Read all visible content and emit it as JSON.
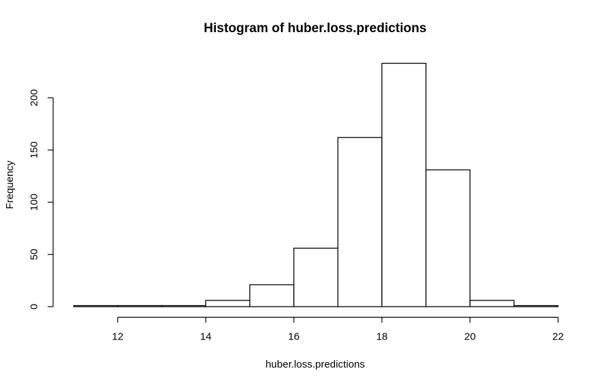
{
  "chart_data": {
    "type": "bar",
    "title": "Histogram of huber.loss.predictions",
    "xlabel": "huber.loss.predictions",
    "ylabel": "Frequency",
    "bins": [
      {
        "from": 11,
        "to": 12,
        "count": 1
      },
      {
        "from": 12,
        "to": 13,
        "count": 1
      },
      {
        "from": 13,
        "to": 14,
        "count": 1
      },
      {
        "from": 14,
        "to": 15,
        "count": 6
      },
      {
        "from": 15,
        "to": 16,
        "count": 21
      },
      {
        "from": 16,
        "to": 17,
        "count": 56
      },
      {
        "from": 17,
        "to": 18,
        "count": 162
      },
      {
        "from": 18,
        "to": 19,
        "count": 233
      },
      {
        "from": 19,
        "to": 20,
        "count": 131
      },
      {
        "from": 20,
        "to": 21,
        "count": 6
      },
      {
        "from": 21,
        "to": 22,
        "count": 1
      }
    ],
    "xlim": [
      11,
      22
    ],
    "ylim": [
      0,
      233
    ],
    "x_ticks": [
      12,
      14,
      16,
      18,
      20,
      22
    ],
    "x_tick_labels": [
      "12",
      "14",
      "16",
      "18",
      "20",
      "22"
    ],
    "y_ticks": [
      0,
      50,
      100,
      150,
      200
    ],
    "y_tick_labels": [
      "0",
      "50",
      "100",
      "150",
      "200"
    ],
    "grid": false,
    "bar_fill": "#ffffff",
    "bar_stroke": "#000000"
  }
}
